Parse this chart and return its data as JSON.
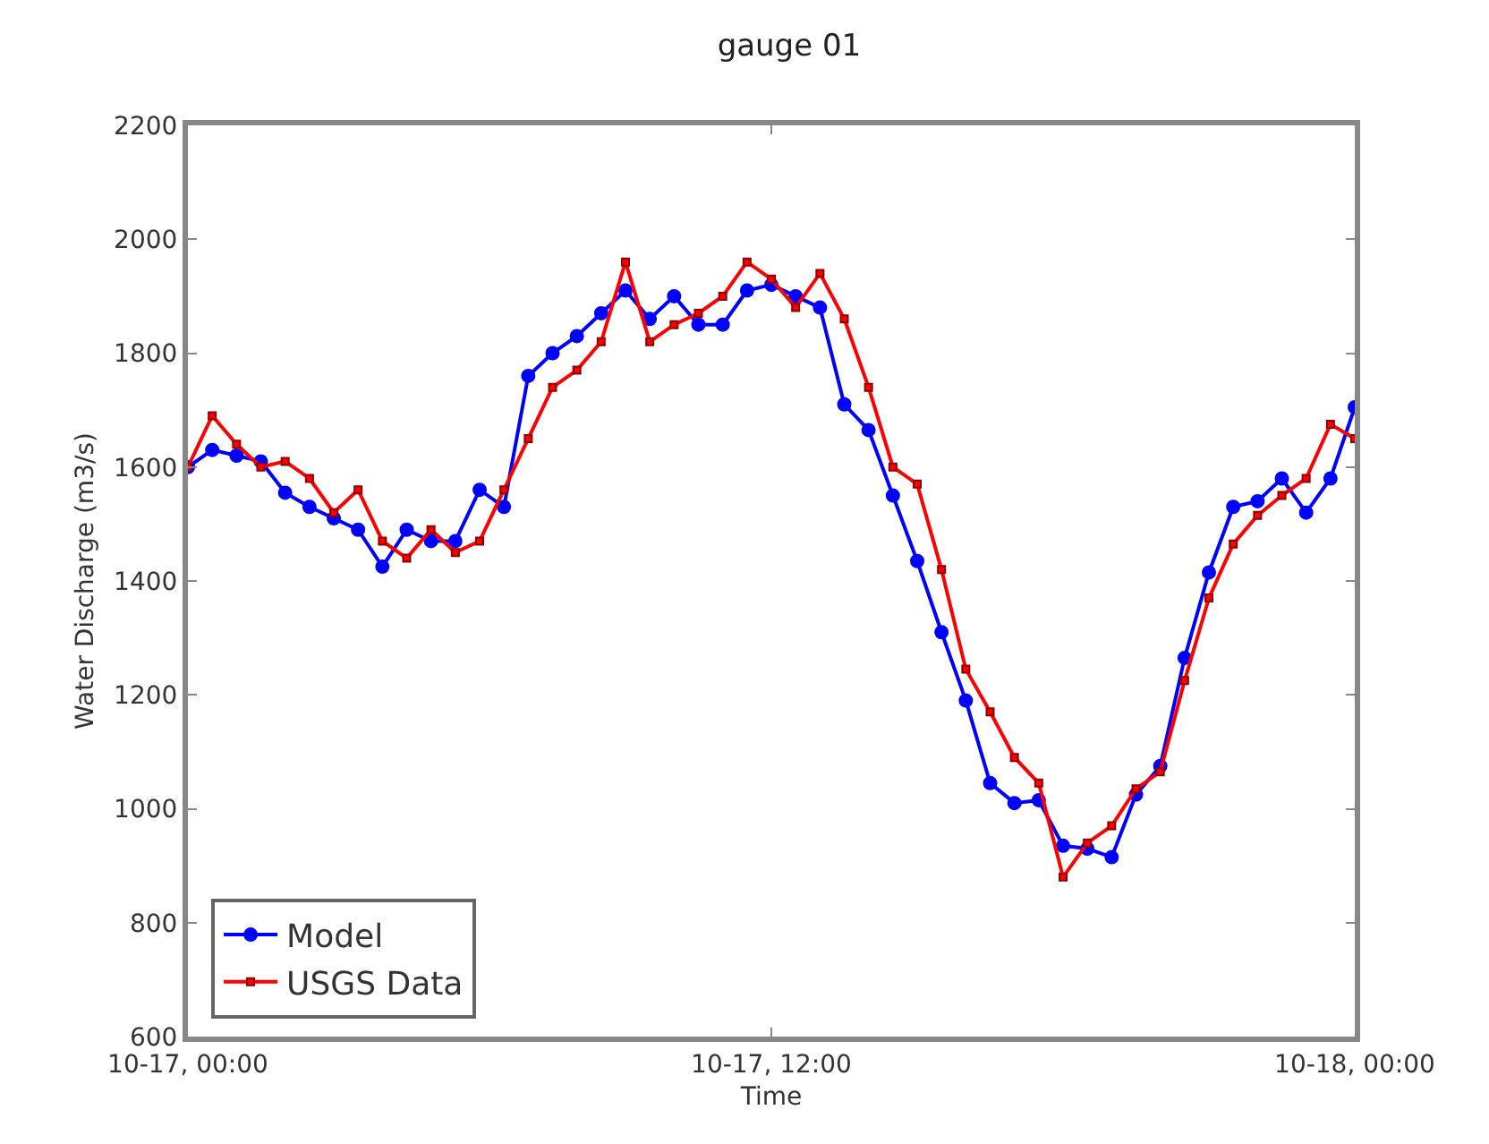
{
  "chart_data": {
    "type": "line",
    "title": "gauge 01",
    "xlabel": "Time",
    "ylabel": "Water Discharge (m3/s)",
    "x": [
      "--10-17T00:00",
      "--10-17T00:30",
      "--10-17T01:00",
      "--10-17T01:30",
      "--10-17T02:00",
      "--10-17T02:30",
      "--10-17T03:00",
      "--10-17T03:30",
      "--10-17T04:00",
      "--10-17T04:30",
      "--10-17T05:00",
      "--10-17T05:30",
      "--10-17T06:00",
      "--10-17T06:30",
      "--10-17T07:00",
      "--10-17T07:30",
      "--10-17T08:00",
      "--10-17T08:30",
      "--10-17T09:00",
      "--10-17T09:30",
      "--10-17T10:00",
      "--10-17T10:30",
      "--10-17T11:00",
      "--10-17T11:30",
      "--10-17T12:00",
      "--10-17T12:30",
      "--10-17T13:00",
      "--10-17T13:30",
      "--10-17T14:00",
      "--10-17T14:30",
      "--10-17T15:00",
      "--10-17T15:30",
      "--10-17T16:00",
      "--10-17T16:30",
      "--10-17T17:00",
      "--10-17T17:30",
      "--10-17T18:00",
      "--10-17T18:30",
      "--10-17T19:00",
      "--10-17T19:30",
      "--10-17T20:00",
      "--10-17T20:30",
      "--10-17T21:00",
      "--10-17T21:30",
      "--10-17T22:00",
      "--10-17T22:30",
      "--10-17T23:00",
      "--10-17T23:30",
      "--10-18T00:00"
    ],
    "series": [
      {
        "name": "Model",
        "color": "#0000ff",
        "marker": "circle",
        "values": [
          1600,
          1630,
          1620,
          1610,
          1555,
          1530,
          1510,
          1490,
          1425,
          1490,
          1470,
          1470,
          1560,
          1530,
          1760,
          1800,
          1830,
          1870,
          1910,
          1860,
          1900,
          1850,
          1850,
          1910,
          1920,
          1900,
          1880,
          1710,
          1665,
          1550,
          1435,
          1310,
          1190,
          1045,
          1010,
          1015,
          935,
          930,
          915,
          1025,
          1075,
          1265,
          1415,
          1530,
          1540,
          1580,
          1520,
          1580,
          1705
        ]
      },
      {
        "name": "USGS Data",
        "color": "#ff0000",
        "marker": "square",
        "values": [
          1600,
          1690,
          1640,
          1600,
          1610,
          1580,
          1520,
          1560,
          1470,
          1440,
          1490,
          1450,
          1470,
          1560,
          1650,
          1740,
          1770,
          1820,
          1960,
          1820,
          1850,
          1870,
          1900,
          1960,
          1930,
          1880,
          1940,
          1860,
          1740,
          1600,
          1570,
          1420,
          1245,
          1170,
          1090,
          1045,
          880,
          940,
          970,
          1035,
          1065,
          1225,
          1370,
          1465,
          1515,
          1550,
          1580,
          1675,
          1650
        ]
      }
    ],
    "xlim": [
      "--10-17T00:00",
      "--10-18T00:00"
    ],
    "xticks": [
      {
        "value": "--10-17T00:00",
        "label": "10-17, 00:00"
      },
      {
        "value": "--10-17T12:00",
        "label": "10-17, 12:00"
      },
      {
        "value": "--10-18T00:00",
        "label": "10-18, 00:00"
      }
    ],
    "ylim": [
      600,
      2200
    ],
    "yticks": [
      600,
      800,
      1000,
      1200,
      1400,
      1600,
      1800,
      2000,
      2200
    ],
    "grid": false,
    "legend": "bottom left",
    "line_style": "solid"
  }
}
